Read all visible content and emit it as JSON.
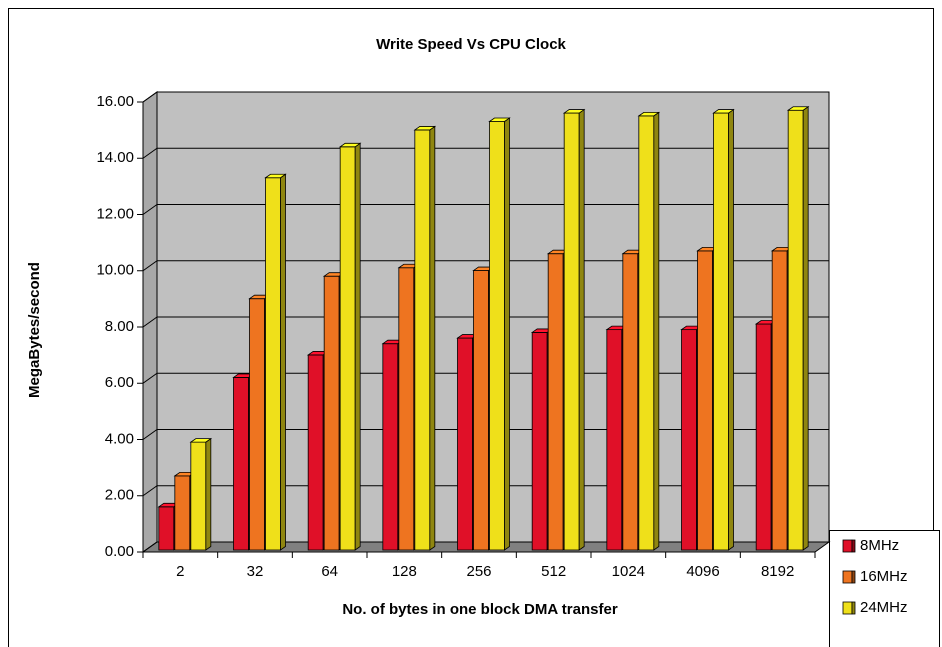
{
  "chart_data": {
    "type": "bar",
    "title": "Write Speed Vs CPU Clock",
    "y_label": "MegaBytes/second",
    "x_label": "No. of bytes in one block DMA transfer",
    "categories": [
      "2",
      "32",
      "64",
      "128",
      "256",
      "512",
      "1024",
      "4096",
      "8192"
    ],
    "series": [
      {
        "name": "8MHz",
        "color": "#e01028",
        "values": [
          1.5,
          6.1,
          6.9,
          7.3,
          7.5,
          7.7,
          7.8,
          7.8,
          8.0
        ]
      },
      {
        "name": "16MHz",
        "color": "#ee7420",
        "values": [
          2.6,
          8.9,
          9.7,
          10.0,
          9.9,
          10.5,
          10.5,
          10.6,
          10.6
        ]
      },
      {
        "name": "24MHz",
        "color": "#efe01a",
        "values": [
          3.8,
          13.2,
          14.3,
          14.9,
          15.2,
          15.5,
          15.4,
          15.5,
          15.6
        ]
      }
    ],
    "ylim": [
      0,
      16
    ],
    "yticks": [
      {
        "value": 0,
        "label": "0.00"
      },
      {
        "value": 2,
        "label": "2.00"
      },
      {
        "value": 4,
        "label": "4.00"
      },
      {
        "value": 6,
        "label": "6.00"
      },
      {
        "value": 8,
        "label": "8.00"
      },
      {
        "value": 10,
        "label": "10.00"
      },
      {
        "value": 12,
        "label": "12.00"
      },
      {
        "value": 14,
        "label": "14.00"
      },
      {
        "value": 16,
        "label": "16.00"
      }
    ],
    "grid": true,
    "legend": "bottom-right"
  }
}
